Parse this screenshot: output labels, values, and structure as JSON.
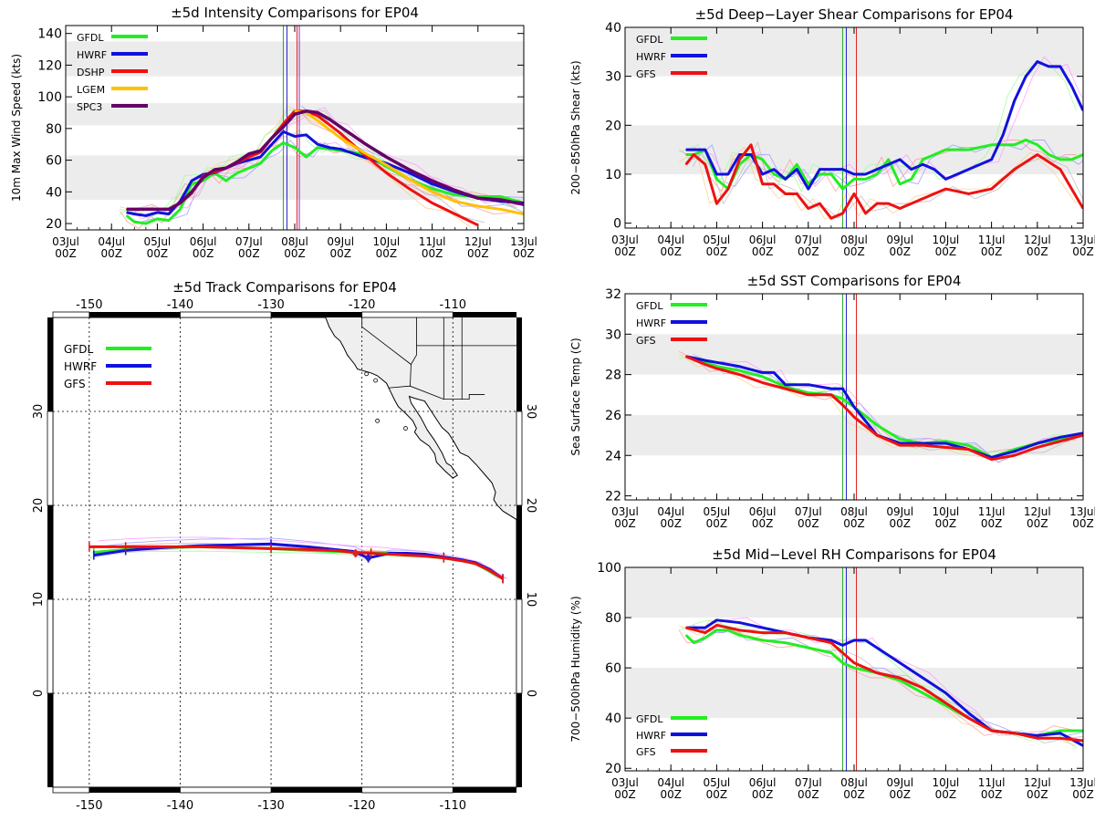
{
  "colors": {
    "GFDL": "#22ee22",
    "HWRF": "#1111dd",
    "DSHP": "#ee1111",
    "LGEM": "#ffc000",
    "SPC3": "#660066",
    "GFS": "#ee1111",
    "band": "#ececec",
    "land": "#efefef"
  },
  "date_ticks": [
    "03Jul",
    "04Jul",
    "05Jul",
    "06Jul",
    "07Jul",
    "08Jul",
    "09Jul",
    "10Jul",
    "11Jul",
    "12Jul",
    "13Jul"
  ],
  "hour_label": "00Z",
  "markers": {
    "green": 7.75,
    "blue": 7.83,
    "red": 8.05,
    "purple": 8.1
  },
  "chart_data": [
    {
      "id": "intensity",
      "type": "line",
      "title": "±5d Intensity Comparisons for EP04",
      "xlabel": "",
      "ylabel": "10m Max Wind Speed (kts)",
      "xlim": [
        3,
        13
      ],
      "ylim": [
        16,
        145
      ],
      "yticks": [
        20,
        40,
        60,
        80,
        100,
        120,
        140
      ],
      "bands": [
        [
          35,
          63
        ],
        [
          82,
          96
        ],
        [
          113,
          135
        ]
      ],
      "legend_position": "top-left",
      "series": [
        {
          "name": "GFDL",
          "x": [
            4.33,
            4.5,
            4.75,
            5.0,
            5.25,
            5.5,
            5.75,
            6.0,
            6.25,
            6.5,
            6.75,
            7.0,
            7.25,
            7.5,
            7.75,
            8.0,
            8.25,
            8.5,
            8.75,
            9.0,
            9.5,
            10.0,
            10.5,
            11.0,
            11.5,
            12.0,
            12.5,
            13.0
          ],
          "y": [
            25,
            21,
            20,
            23,
            22,
            29,
            45,
            47,
            52,
            47,
            52,
            55,
            58,
            66,
            71,
            68,
            62,
            68,
            67,
            66,
            64,
            56,
            48,
            42,
            38,
            37,
            37,
            33
          ]
        },
        {
          "name": "HWRF",
          "x": [
            4.33,
            4.5,
            4.75,
            5.0,
            5.25,
            5.5,
            5.75,
            6.0,
            6.25,
            6.5,
            6.75,
            7.0,
            7.25,
            7.5,
            7.75,
            8.0,
            8.25,
            8.5,
            8.75,
            9.0,
            9.5,
            10.0,
            10.5,
            11.0,
            11.5,
            12.0,
            12.5,
            13.0
          ],
          "y": [
            27,
            26,
            25,
            27,
            26,
            34,
            47,
            51,
            52,
            55,
            58,
            60,
            62,
            70,
            78,
            75,
            76,
            70,
            68,
            67,
            62,
            58,
            52,
            45,
            40,
            36,
            34,
            33
          ]
        },
        {
          "name": "DSHP",
          "x": [
            4.33,
            4.75,
            5.0,
            5.25,
            5.5,
            5.75,
            6.0,
            6.5,
            7.0,
            7.25,
            7.5,
            7.75,
            8.0,
            8.25,
            8.5,
            9.0,
            9.5,
            10.0,
            10.5,
            11.0,
            11.5,
            12.0
          ],
          "y": [
            29,
            29,
            29,
            29,
            33,
            39,
            50,
            55,
            62,
            65,
            74,
            83,
            91,
            91,
            88,
            77,
            64,
            52,
            42,
            33,
            26,
            19
          ]
        },
        {
          "name": "LGEM",
          "x": [
            8.0,
            8.25,
            8.5,
            9.0,
            9.5,
            10.0,
            10.5,
            11.0,
            11.5,
            12.0,
            12.5,
            13.0
          ],
          "y": [
            91,
            90,
            85,
            74,
            65,
            57,
            48,
            40,
            34,
            31,
            29,
            26
          ]
        },
        {
          "name": "SPC3",
          "x": [
            4.33,
            4.75,
            5.0,
            5.25,
            5.5,
            5.75,
            6.0,
            6.25,
            6.5,
            6.75,
            7.0,
            7.25,
            7.5,
            7.75,
            8.0,
            8.25,
            8.5,
            8.75,
            9.0,
            9.5,
            10.0,
            10.5,
            11.0,
            11.5,
            12.0,
            12.5,
            13.0
          ],
          "y": [
            29,
            29,
            29,
            29,
            33,
            40,
            49,
            54,
            55,
            59,
            64,
            66,
            74,
            81,
            89,
            91,
            90,
            86,
            81,
            71,
            62,
            54,
            47,
            41,
            36,
            35,
            32
          ]
        }
      ]
    },
    {
      "id": "shear",
      "type": "line",
      "title": "±5d Deep−Layer Shear Comparisons for EP04",
      "xlabel": "",
      "ylabel": "200−850hPa Shear (kts)",
      "xlim": [
        3,
        13
      ],
      "ylim": [
        -1,
        40
      ],
      "yticks": [
        0,
        10,
        20,
        30,
        40
      ],
      "bands": [
        [
          10,
          20
        ],
        [
          30,
          40
        ]
      ],
      "legend_position": "top-left",
      "series": [
        {
          "name": "GFDL",
          "x": [
            4.33,
            4.5,
            4.75,
            5.0,
            5.25,
            5.5,
            5.75,
            6.0,
            6.25,
            6.5,
            6.75,
            7.0,
            7.25,
            7.5,
            7.75,
            8.0,
            8.25,
            8.5,
            8.75,
            9.0,
            9.25,
            9.5,
            10.0,
            10.5,
            11.0,
            11.5,
            11.75,
            12.0,
            12.25,
            12.5,
            12.75,
            13.0
          ],
          "y": [
            14,
            14,
            15,
            9,
            7,
            12,
            14,
            13,
            10,
            9,
            12,
            8,
            10,
            10,
            7,
            9,
            9,
            10,
            13,
            8,
            9,
            13,
            15,
            15,
            16,
            16,
            17,
            16,
            14,
            13,
            13,
            14
          ]
        },
        {
          "name": "HWRF",
          "x": [
            4.33,
            4.75,
            5.0,
            5.25,
            5.5,
            5.75,
            6.0,
            6.25,
            6.5,
            6.75,
            7.0,
            7.25,
            7.5,
            7.75,
            8.0,
            8.25,
            8.5,
            8.75,
            9.0,
            9.25,
            9.5,
            9.75,
            10.0,
            10.5,
            11.0,
            11.25,
            11.5,
            11.75,
            12.0,
            12.25,
            12.5,
            12.75,
            13.0
          ],
          "y": [
            15,
            15,
            10,
            10,
            14,
            14,
            10,
            11,
            9,
            11,
            7,
            11,
            11,
            11,
            10,
            10,
            11,
            12,
            13,
            11,
            12,
            11,
            9,
            11,
            13,
            18,
            25,
            30,
            33,
            32,
            32,
            28,
            23
          ]
        },
        {
          "name": "GFS",
          "x": [
            4.33,
            4.5,
            4.75,
            5.0,
            5.25,
            5.5,
            5.75,
            6.0,
            6.25,
            6.5,
            6.75,
            7.0,
            7.25,
            7.5,
            7.75,
            8.0,
            8.25,
            8.5,
            8.75,
            9.0,
            9.5,
            10.0,
            10.5,
            11.0,
            11.5,
            12.0,
            12.5,
            13.0
          ],
          "y": [
            12,
            14,
            12,
            4,
            7,
            13,
            16,
            8,
            8,
            6,
            6,
            3,
            4,
            1,
            2,
            6,
            2,
            4,
            4,
            3,
            5,
            7,
            6,
            7,
            11,
            14,
            11,
            3
          ]
        }
      ]
    },
    {
      "id": "sst",
      "type": "line",
      "title": "±5d SST Comparisons for EP04",
      "xlabel": "",
      "ylabel": "Sea Surface Temp (C)",
      "xlim": [
        3,
        13
      ],
      "ylim": [
        21.8,
        32
      ],
      "yticks": [
        22,
        24,
        26,
        28,
        30,
        32
      ],
      "bands": [
        [
          24,
          26
        ],
        [
          28,
          30
        ]
      ],
      "legend_position": "top-left",
      "series": [
        {
          "name": "GFDL",
          "x": [
            4.33,
            4.75,
            5.0,
            5.5,
            6.0,
            6.5,
            7.0,
            7.5,
            7.75,
            8.0,
            8.5,
            9.0,
            9.5,
            10.0,
            10.5,
            11.0,
            11.5,
            12.0,
            12.5,
            13.0
          ],
          "y": [
            28.9,
            28.6,
            28.4,
            28.2,
            27.9,
            27.4,
            27.1,
            27.0,
            26.8,
            26.4,
            25.5,
            24.8,
            24.6,
            24.7,
            24.5,
            23.9,
            24.3,
            24.6,
            24.8,
            25.0
          ]
        },
        {
          "name": "HWRF",
          "x": [
            4.33,
            4.75,
            5.0,
            5.5,
            6.0,
            6.25,
            6.5,
            7.0,
            7.5,
            7.75,
            8.0,
            8.5,
            9.0,
            9.5,
            10.0,
            10.5,
            11.0,
            11.5,
            12.0,
            12.5,
            13.0
          ],
          "y": [
            28.9,
            28.7,
            28.6,
            28.4,
            28.1,
            28.1,
            27.5,
            27.5,
            27.3,
            27.3,
            26.4,
            25.0,
            24.6,
            24.6,
            24.6,
            24.3,
            23.9,
            24.2,
            24.6,
            24.9,
            25.1
          ]
        },
        {
          "name": "GFS",
          "x": [
            4.33,
            4.75,
            5.0,
            5.5,
            6.0,
            6.5,
            7.0,
            7.5,
            7.75,
            8.0,
            8.5,
            9.0,
            9.5,
            10.0,
            10.5,
            11.0,
            11.5,
            12.0,
            12.5,
            13.0
          ],
          "y": [
            28.9,
            28.5,
            28.3,
            28.0,
            27.6,
            27.3,
            27.0,
            27.0,
            26.5,
            25.9,
            25.0,
            24.5,
            24.5,
            24.4,
            24.3,
            23.8,
            24.0,
            24.4,
            24.7,
            25.0
          ]
        }
      ]
    },
    {
      "id": "rh",
      "type": "line",
      "title": "±5d Mid−Level RH Comparisons for EP04",
      "xlabel": "",
      "ylabel": "700−500hPa Humidity (%)",
      "xlim": [
        3,
        13
      ],
      "ylim": [
        19,
        100
      ],
      "yticks": [
        20,
        40,
        60,
        80,
        100
      ],
      "bands": [
        [
          40,
          60
        ],
        [
          80,
          100
        ]
      ],
      "legend_position": "bottom-left",
      "series": [
        {
          "name": "GFDL",
          "x": [
            4.33,
            4.5,
            4.75,
            5.0,
            5.25,
            5.5,
            6.0,
            6.5,
            7.0,
            7.5,
            7.75,
            8.0,
            8.5,
            9.0,
            9.5,
            10.0,
            10.5,
            11.0,
            11.5,
            12.0,
            12.5,
            13.0
          ],
          "y": [
            73,
            70,
            72,
            75,
            75,
            73,
            71,
            70,
            68,
            66,
            62,
            60,
            58,
            55,
            50,
            45,
            40,
            35,
            34,
            33,
            35,
            35
          ]
        },
        {
          "name": "HWRF",
          "x": [
            4.33,
            4.75,
            5.0,
            5.5,
            6.0,
            6.5,
            7.0,
            7.5,
            7.75,
            8.0,
            8.25,
            8.5,
            9.0,
            9.5,
            10.0,
            10.5,
            11.0,
            11.5,
            12.0,
            12.5,
            13.0
          ],
          "y": [
            76,
            76,
            79,
            78,
            76,
            74,
            72,
            71,
            69,
            71,
            71,
            68,
            62,
            56,
            50,
            42,
            35,
            34,
            33,
            34,
            29
          ]
        },
        {
          "name": "GFS",
          "x": [
            4.33,
            4.75,
            5.0,
            5.5,
            6.0,
            6.5,
            7.0,
            7.5,
            7.75,
            8.0,
            8.5,
            9.0,
            9.5,
            10.0,
            10.5,
            11.0,
            11.5,
            12.0,
            12.5,
            13.0
          ],
          "y": [
            76,
            74,
            77,
            75,
            74,
            74,
            72,
            70,
            66,
            62,
            58,
            56,
            52,
            46,
            40,
            35,
            34,
            32,
            32,
            31
          ]
        }
      ]
    },
    {
      "id": "track",
      "type": "line",
      "title": "±5d Track Comparisons for EP04",
      "xlabel": "",
      "ylabel": "",
      "xlim": [
        -154,
        -103
      ],
      "ylim": [
        -10,
        40
      ],
      "xticks": [
        -150,
        -140,
        -130,
        -120,
        -110
      ],
      "yticks": [
        0,
        10,
        20,
        30
      ],
      "legend_position": "top-left",
      "series": [
        {
          "name": "GFDL",
          "lon": [
            -104.5,
            -106,
            -107.5,
            -109,
            -111,
            -113,
            -115,
            -117,
            -119,
            -121,
            -123,
            -126,
            -130,
            -134,
            -138,
            -142,
            -146,
            -149.5
          ],
          "lat": [
            12.2,
            13.0,
            13.8,
            14.1,
            14.4,
            14.7,
            14.8,
            14.9,
            15.0,
            15.0,
            15.1,
            15.2,
            15.4,
            15.5,
            15.6,
            15.5,
            15.3,
            15.0
          ]
        },
        {
          "name": "HWRF",
          "lon": [
            -104.5,
            -106,
            -107.5,
            -109,
            -111,
            -113,
            -115,
            -117,
            -119.3,
            -121,
            -123,
            -126,
            -130,
            -134,
            -138,
            -142,
            -146,
            -149.5
          ],
          "lat": [
            12.2,
            13.2,
            13.9,
            14.2,
            14.5,
            14.8,
            14.9,
            14.9,
            14.4,
            15.1,
            15.3,
            15.6,
            15.9,
            15.8,
            15.7,
            15.5,
            15.2,
            14.7
          ]
        },
        {
          "name": "GFS",
          "lon": [
            -104.5,
            -106,
            -107.5,
            -109,
            -111,
            -113,
            -115,
            -117,
            -119,
            -121,
            -123,
            -126,
            -130,
            -134,
            -138,
            -142,
            -146,
            -150
          ],
          "lat": [
            12.2,
            13.1,
            13.8,
            14.1,
            14.4,
            14.6,
            14.7,
            14.8,
            14.9,
            15.0,
            15.2,
            15.3,
            15.4,
            15.5,
            15.6,
            15.6,
            15.6,
            15.6
          ]
        }
      ]
    }
  ]
}
